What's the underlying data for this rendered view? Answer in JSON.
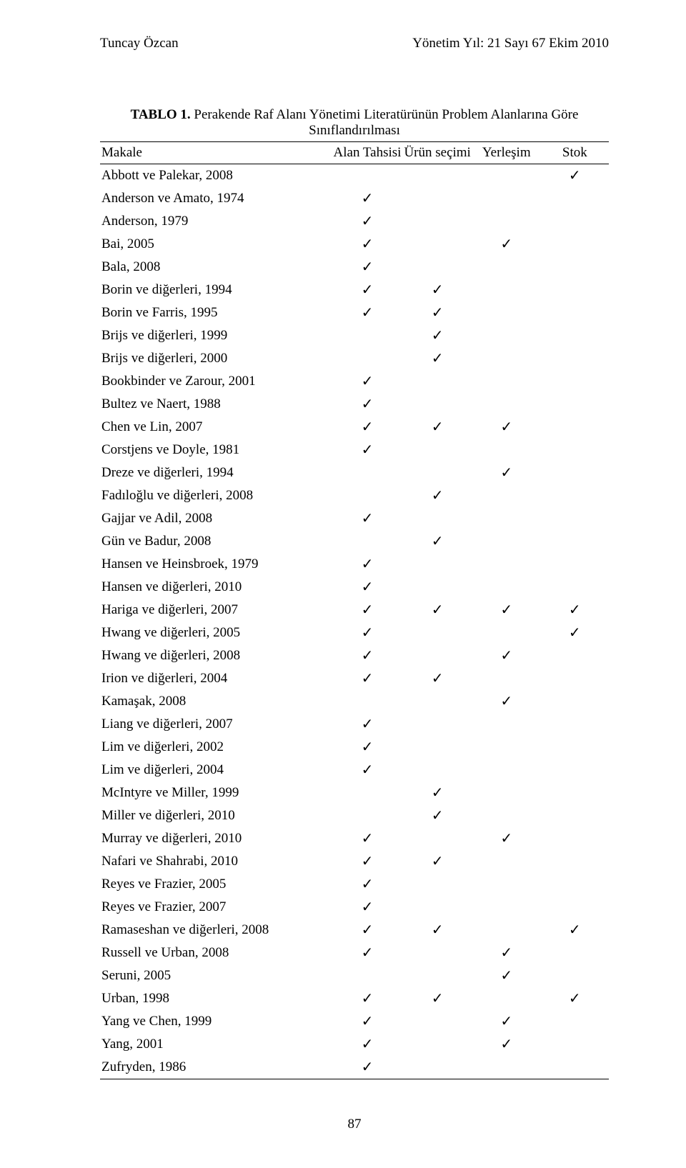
{
  "header": {
    "left": "Tuncay Özcan",
    "right_line1": "Yönetim Yıl: 21 Sayı 67 Ekim 2010",
    "right_line2": ""
  },
  "table": {
    "label_prefix": "TABLO 1.",
    "title_rest": " Perakende Raf Alanı Yönetimi Literatürünün Problem Alanlarına Göre Sınıflandırılması",
    "columns": {
      "makale": "Makale",
      "alan": "Alan Tahsisi",
      "urun": "Ürün seçimi",
      "yerlesim": "Yerleşim",
      "stok": "Stok"
    },
    "check": "✓",
    "rows": [
      {
        "name": "Abbott ve Palekar, 2008",
        "c": [
          0,
          0,
          0,
          1
        ]
      },
      {
        "name": "Anderson ve Amato, 1974",
        "c": [
          1,
          0,
          0,
          0
        ]
      },
      {
        "name": "Anderson, 1979",
        "c": [
          1,
          0,
          0,
          0
        ]
      },
      {
        "name": "Bai, 2005",
        "c": [
          1,
          0,
          1,
          0
        ]
      },
      {
        "name": "Bala, 2008",
        "c": [
          1,
          0,
          0,
          0
        ]
      },
      {
        "name": "Borin ve diğerleri, 1994",
        "c": [
          1,
          1,
          0,
          0
        ]
      },
      {
        "name": "Borin ve Farris, 1995",
        "c": [
          1,
          1,
          0,
          0
        ]
      },
      {
        "name": "Brijs ve diğerleri, 1999",
        "c": [
          0,
          1,
          0,
          0
        ]
      },
      {
        "name": "Brijs ve diğerleri, 2000",
        "c": [
          0,
          1,
          0,
          0
        ]
      },
      {
        "name": "Bookbinder ve Zarour, 2001",
        "c": [
          1,
          0,
          0,
          0
        ]
      },
      {
        "name": "Bultez ve Naert, 1988",
        "c": [
          1,
          0,
          0,
          0
        ]
      },
      {
        "name": "Chen ve Lin, 2007",
        "c": [
          1,
          1,
          1,
          0
        ]
      },
      {
        "name": "Corstjens ve Doyle, 1981",
        "c": [
          1,
          0,
          0,
          0
        ]
      },
      {
        "name": "Dreze ve diğerleri, 1994",
        "c": [
          0,
          0,
          1,
          0
        ]
      },
      {
        "name": "Fadıloğlu ve diğerleri, 2008",
        "c": [
          0,
          1,
          0,
          0
        ]
      },
      {
        "name": "Gajjar ve Adil, 2008",
        "c": [
          1,
          0,
          0,
          0
        ]
      },
      {
        "name": "Gün ve Badur, 2008",
        "c": [
          0,
          1,
          0,
          0
        ]
      },
      {
        "name": "Hansen ve Heinsbroek, 1979",
        "c": [
          1,
          0,
          0,
          0
        ]
      },
      {
        "name": "Hansen ve diğerleri, 2010",
        "c": [
          1,
          0,
          0,
          0
        ]
      },
      {
        "name": "Hariga ve diğerleri, 2007",
        "c": [
          1,
          1,
          1,
          1
        ]
      },
      {
        "name": "Hwang ve diğerleri, 2005",
        "c": [
          1,
          0,
          0,
          1
        ]
      },
      {
        "name": "Hwang ve diğerleri, 2008",
        "c": [
          1,
          0,
          1,
          0
        ]
      },
      {
        "name": "Irion ve diğerleri, 2004",
        "c": [
          1,
          1,
          0,
          0
        ]
      },
      {
        "name": "Kamaşak, 2008",
        "c": [
          0,
          0,
          1,
          0
        ]
      },
      {
        "name": "Liang ve diğerleri, 2007",
        "c": [
          1,
          0,
          0,
          0
        ]
      },
      {
        "name": "Lim ve diğerleri, 2002",
        "c": [
          1,
          0,
          0,
          0
        ]
      },
      {
        "name": "Lim ve diğerleri, 2004",
        "c": [
          1,
          0,
          0,
          0
        ]
      },
      {
        "name": "McIntyre ve Miller, 1999",
        "c": [
          0,
          1,
          0,
          0
        ]
      },
      {
        "name": "Miller ve diğerleri, 2010",
        "c": [
          0,
          1,
          0,
          0
        ]
      },
      {
        "name": "Murray ve diğerleri, 2010",
        "c": [
          1,
          0,
          1,
          0
        ]
      },
      {
        "name": "Nafari ve Shahrabi, 2010",
        "c": [
          1,
          1,
          0,
          0
        ]
      },
      {
        "name": "Reyes ve Frazier, 2005",
        "c": [
          1,
          0,
          0,
          0
        ]
      },
      {
        "name": "Reyes ve Frazier, 2007",
        "c": [
          1,
          0,
          0,
          0
        ]
      },
      {
        "name": "Ramaseshan ve diğerleri, 2008",
        "c": [
          1,
          1,
          0,
          1
        ]
      },
      {
        "name": "Russell ve Urban, 2008",
        "c": [
          1,
          0,
          1,
          0
        ]
      },
      {
        "name": "Seruni, 2005",
        "c": [
          0,
          0,
          1,
          0
        ]
      },
      {
        "name": "Urban, 1998",
        "c": [
          1,
          1,
          0,
          1
        ]
      },
      {
        "name": "Yang ve Chen, 1999",
        "c": [
          1,
          0,
          1,
          0
        ]
      },
      {
        "name": "Yang, 2001",
        "c": [
          1,
          0,
          1,
          0
        ]
      },
      {
        "name": "Zufryden, 1986",
        "c": [
          1,
          0,
          0,
          0
        ]
      }
    ]
  },
  "footer": {
    "page_number": "87"
  }
}
